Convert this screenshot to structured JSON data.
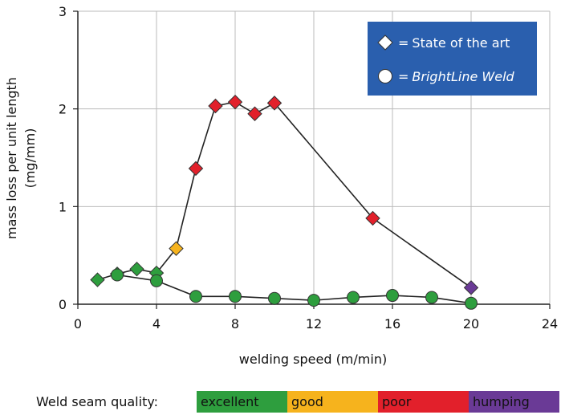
{
  "chart_data": {
    "type": "line",
    "xlabel": "welding speed (m/min)",
    "ylabel_line1": "mass loss per unit length",
    "ylabel_line2": "(mg/mm)",
    "xlim": [
      0,
      24
    ],
    "ylim": [
      0,
      3
    ],
    "xticks": [
      0,
      4,
      8,
      12,
      16,
      20,
      24
    ],
    "yticks": [
      0,
      1,
      2,
      3
    ],
    "grid": true,
    "legend_position": "top-right",
    "series": [
      {
        "name": "State of the art",
        "marker": "diamond",
        "x": [
          1,
          2,
          3,
          4,
          5,
          6,
          7,
          8,
          9,
          10,
          15,
          20
        ],
        "y": [
          0.25,
          0.31,
          0.36,
          0.32,
          0.57,
          1.39,
          2.03,
          2.07,
          1.95,
          2.06,
          0.88,
          0.17
        ],
        "quality": [
          "excellent",
          "excellent",
          "excellent",
          "excellent",
          "good",
          "poor",
          "poor",
          "poor",
          "poor",
          "poor",
          "poor",
          "humping"
        ]
      },
      {
        "name": "BrightLine Weld",
        "marker": "circle",
        "x": [
          2,
          4,
          6,
          8,
          10,
          12,
          14,
          16,
          18,
          20
        ],
        "y": [
          0.3,
          0.24,
          0.08,
          0.08,
          0.06,
          0.04,
          0.07,
          0.09,
          0.07,
          0.01
        ],
        "quality": [
          "excellent",
          "excellent",
          "excellent",
          "excellent",
          "excellent",
          "excellent",
          "excellent",
          "excellent",
          "excellent",
          "excellent"
        ]
      }
    ]
  },
  "legend": {
    "eq": "=",
    "item1": "State of the art",
    "item2": "BrightLine Weld"
  },
  "quality_bar": {
    "label": "Weld seam quality:",
    "segments": [
      {
        "key": "excellent",
        "label": "excellent",
        "color": "#2e9e3e"
      },
      {
        "key": "good",
        "label": "good",
        "color": "#f6b31d"
      },
      {
        "key": "poor",
        "label": "poor",
        "color": "#e2202b"
      },
      {
        "key": "humping",
        "label": "humping",
        "color": "#6a3a96"
      }
    ]
  },
  "colors": {
    "line": "#222222",
    "legend_bg": "#2a5fae",
    "grid": "#bbbbbb"
  }
}
